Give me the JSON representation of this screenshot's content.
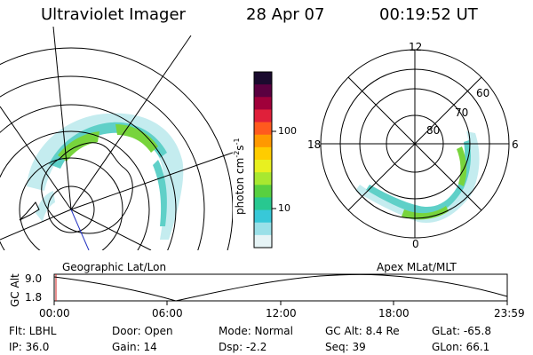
{
  "header": {
    "instrument": "Ultraviolet Imager",
    "date": "28 Apr 07",
    "time": "00:19:52 UT"
  },
  "colorbar": {
    "label_main": "photon cm",
    "label_exp1": "-2",
    "label_mid": "s",
    "label_exp2": "-1",
    "ticks": [
      "100",
      "10"
    ],
    "colors": [
      "#1a0a2e",
      "#5a0040",
      "#a0003a",
      "#e0203a",
      "#ff5a1e",
      "#ff9900",
      "#ffcc00",
      "#e8f020",
      "#a8e830",
      "#58d040",
      "#28c890",
      "#38c8d8",
      "#9ae0e8",
      "#e6f4f6"
    ]
  },
  "polar_plot": {
    "mlt_labels": {
      "top": "12",
      "left": "18",
      "right": "6",
      "bottom": "0"
    },
    "lat_labels": [
      "60",
      "70",
      "80"
    ]
  },
  "map_labels": {
    "left": "Geographic Lat/Lon",
    "right": "Apex MLat/MLT"
  },
  "alt_plot": {
    "ylabel": "GC Alt",
    "yticks": [
      "9.0",
      "1.8"
    ],
    "xticks": [
      "00:00",
      "06:00",
      "12:00",
      "18:00",
      "23:59"
    ]
  },
  "info": {
    "flt": "Flt: LBHL",
    "ip": "IP: 36.0",
    "door": "Door: Open",
    "gain": "Gain: 14",
    "mode": "Mode: Normal",
    "dsp": "Dsp:    -2.2",
    "gcalt": "GC Alt: 8.4 Re",
    "seq": "Seq: 39",
    "glat": "GLat: -65.8",
    "glon": "GLon: 66.1"
  }
}
